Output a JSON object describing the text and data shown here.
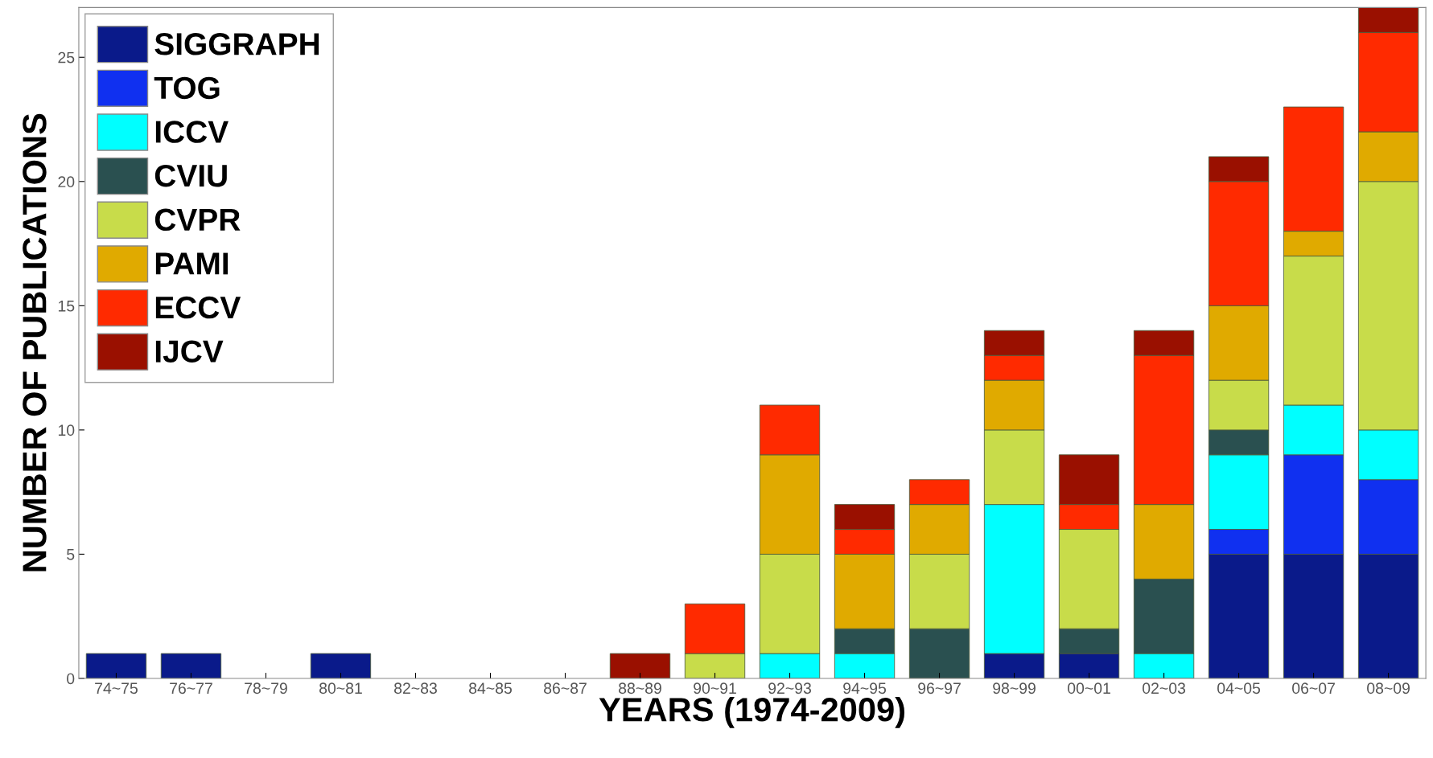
{
  "chart_data": {
    "type": "bar",
    "stacked": true,
    "xlabel": "YEARS (1974-2009)",
    "ylabel": "NUMBER OF PUBLICATIONS",
    "categories": [
      "74~75",
      "76~77",
      "78~79",
      "80~81",
      "82~83",
      "84~85",
      "86~87",
      "88~89",
      "90~91",
      "92~93",
      "94~95",
      "96~97",
      "98~99",
      "00~01",
      "02~03",
      "04~05",
      "06~07",
      "08~09"
    ],
    "series": [
      {
        "name": "SIGGRAPH",
        "color": "#0a1a8a",
        "values": [
          1,
          1,
          0,
          1,
          0,
          0,
          0,
          0,
          0,
          0,
          0,
          0,
          1,
          1,
          0,
          5,
          5,
          5
        ]
      },
      {
        "name": "TOG",
        "color": "#1030f0",
        "values": [
          0,
          0,
          0,
          0,
          0,
          0,
          0,
          0,
          0,
          0,
          0,
          0,
          0,
          0,
          0,
          1,
          4,
          3
        ]
      },
      {
        "name": "ICCV",
        "color": "#00ffff",
        "values": [
          0,
          0,
          0,
          0,
          0,
          0,
          0,
          0,
          0,
          1,
          1,
          0,
          6,
          0,
          1,
          3,
          2,
          2
        ]
      },
      {
        "name": "CVIU",
        "color": "#2a5050",
        "values": [
          0,
          0,
          0,
          0,
          0,
          0,
          0,
          0,
          0,
          0,
          1,
          2,
          0,
          1,
          3,
          1,
          0,
          0
        ]
      },
      {
        "name": "CVPR",
        "color": "#c8dc4a",
        "values": [
          0,
          0,
          0,
          0,
          0,
          0,
          0,
          0,
          1,
          4,
          0,
          3,
          3,
          4,
          0,
          2,
          6,
          10
        ]
      },
      {
        "name": "PAMI",
        "color": "#e0aa00",
        "values": [
          0,
          0,
          0,
          0,
          0,
          0,
          0,
          0,
          0,
          4,
          3,
          2,
          2,
          0,
          3,
          3,
          1,
          2
        ]
      },
      {
        "name": "ECCV",
        "color": "#ff2a00",
        "values": [
          0,
          0,
          0,
          0,
          0,
          0,
          0,
          0,
          2,
          2,
          1,
          1,
          1,
          1,
          6,
          5,
          5,
          4
        ]
      },
      {
        "name": "IJCV",
        "color": "#9a1000",
        "values": [
          0,
          0,
          0,
          0,
          0,
          0,
          0,
          1,
          0,
          0,
          1,
          0,
          1,
          2,
          1,
          1,
          0,
          1
        ]
      }
    ],
    "ylim": [
      0,
      27
    ],
    "yticks": [
      0,
      5,
      10,
      15,
      20,
      25
    ],
    "legend": "top left",
    "grid": false
  }
}
